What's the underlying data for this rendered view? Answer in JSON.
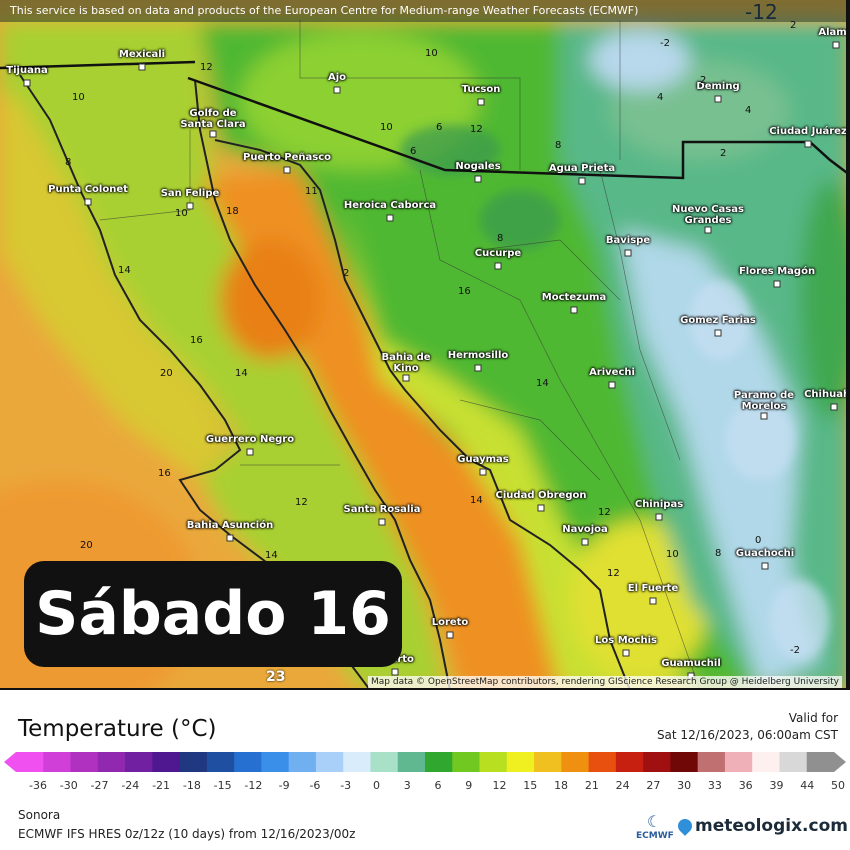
{
  "banner": "This service is based on data and products of the European Centre for Medium-range Weather Forecasts (ECMWF)",
  "day_label": "Sábado 16",
  "attribution": "Map data © OpenStreetMap contributors, rendering GIScience Research Group @ Heidelberg University",
  "bottom_value": "23",
  "cities": [
    "Tijuana",
    "Mexicali",
    "Golfo de Santa Clara",
    "Puerto Peñasco",
    "Punta Colonet",
    "San Felipe",
    "Ajo",
    "Tucson",
    "Nogales",
    "Agua Prieta",
    "Heroica Caborca",
    "Cucurpe",
    "Bavispe",
    "Nuevo Casas Grandes",
    "Deming",
    "Ciudad Juárez",
    "Alamo",
    "Flores Magón",
    "Moctezuma",
    "Gomez Farias",
    "Hermosillo",
    "Bahia de Kino",
    "Arivechi",
    "Paramo de Morelos",
    "Chihuahua",
    "Guerrero Negro",
    "Guaymas",
    "Ciudad Obregon",
    "Chinipas",
    "Santa Rosalia",
    "Bahia Asunción",
    "Navojoa",
    "Guachochi",
    "El Fuerte",
    "Loreto",
    "Los Mochis",
    "Guamuchil",
    "Puerto"
  ],
  "isolines": [
    "12",
    "10",
    "10",
    "8",
    "10",
    "12",
    "8",
    "6",
    "11",
    "14",
    "16",
    "14",
    "16",
    "20",
    "20",
    "14",
    "12",
    "14",
    "12",
    "12",
    "10",
    "8",
    "4",
    "2",
    "2",
    "-2",
    "2",
    "4",
    "0",
    "-2",
    "-12",
    "14",
    "8",
    "6",
    "10",
    "18",
    "16",
    "2"
  ],
  "legend": {
    "title": "Temperature (°C)",
    "valid_label": "Valid for",
    "valid_time": "Sat 12/16/2023, 06:00am CST",
    "ticks": [
      "-36",
      "-30",
      "-27",
      "-24",
      "-21",
      "-18",
      "-15",
      "-12",
      "-9",
      "-6",
      "-3",
      "0",
      "3",
      "6",
      "9",
      "12",
      "15",
      "18",
      "21",
      "24",
      "27",
      "30",
      "33",
      "36",
      "39",
      "44",
      "50"
    ],
    "colors": [
      "#f050f0",
      "#d040d8",
      "#b030c0",
      "#9028b0",
      "#7020a0",
      "#501890",
      "#203880",
      "#1f4fa0",
      "#2570d0",
      "#3a90e8",
      "#70b0f0",
      "#a8d0f8",
      "#d8ecfc",
      "#a8e0c8",
      "#60b890",
      "#30a830",
      "#70c820",
      "#b8e020",
      "#f0f020",
      "#f0c020",
      "#f09010",
      "#e85010",
      "#c82010",
      "#a01010",
      "#700808",
      "#c07070",
      "#f0b0b8",
      "#fff0f0",
      "#d8d8d8",
      "#909090"
    ]
  },
  "footer": {
    "region": "Sonora",
    "model": "ECMWF IFS HRES 0z/12z (10 days) from  12/16/2023/00z",
    "ecmwf_logo": "ECMWF",
    "brand": "meteologix.com"
  }
}
